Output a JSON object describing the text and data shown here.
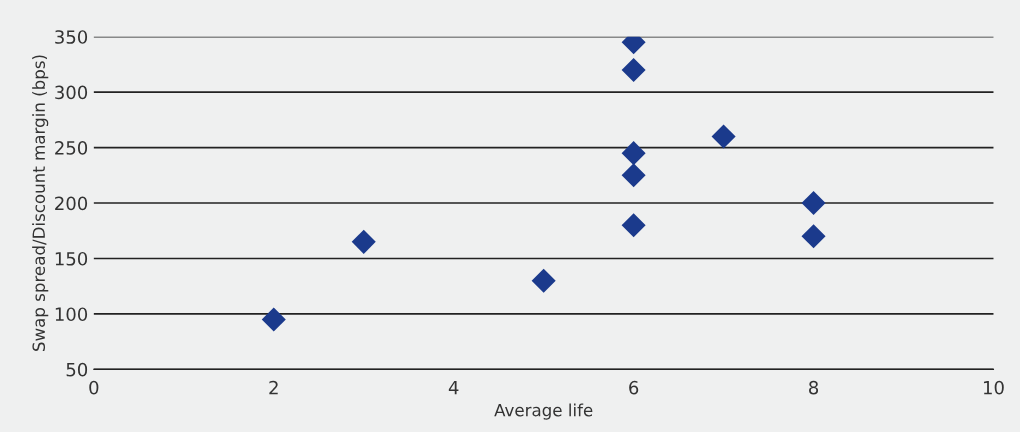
{
  "chart_data": {
    "type": "scatter",
    "xlabel": "Average life",
    "ylabel": "Swap spread/Discount margin (bps)",
    "x": [
      2,
      3,
      5,
      6,
      6,
      6,
      6,
      6,
      7,
      8,
      8
    ],
    "series": [
      {
        "color": "#1b3a8c",
        "values": [
          95,
          165,
          130,
          345,
          320,
          245,
          225,
          180,
          260,
          200,
          170
        ]
      }
    ],
    "xlim": [
      0,
      10
    ],
    "xticks": [
      0,
      2,
      4,
      6,
      8,
      10
    ],
    "ylim": [
      50,
      350
    ],
    "yticks": [
      50,
      100,
      150,
      200,
      250,
      300,
      350
    ],
    "grid": "y",
    "marker": "diamond",
    "legend": false
  }
}
